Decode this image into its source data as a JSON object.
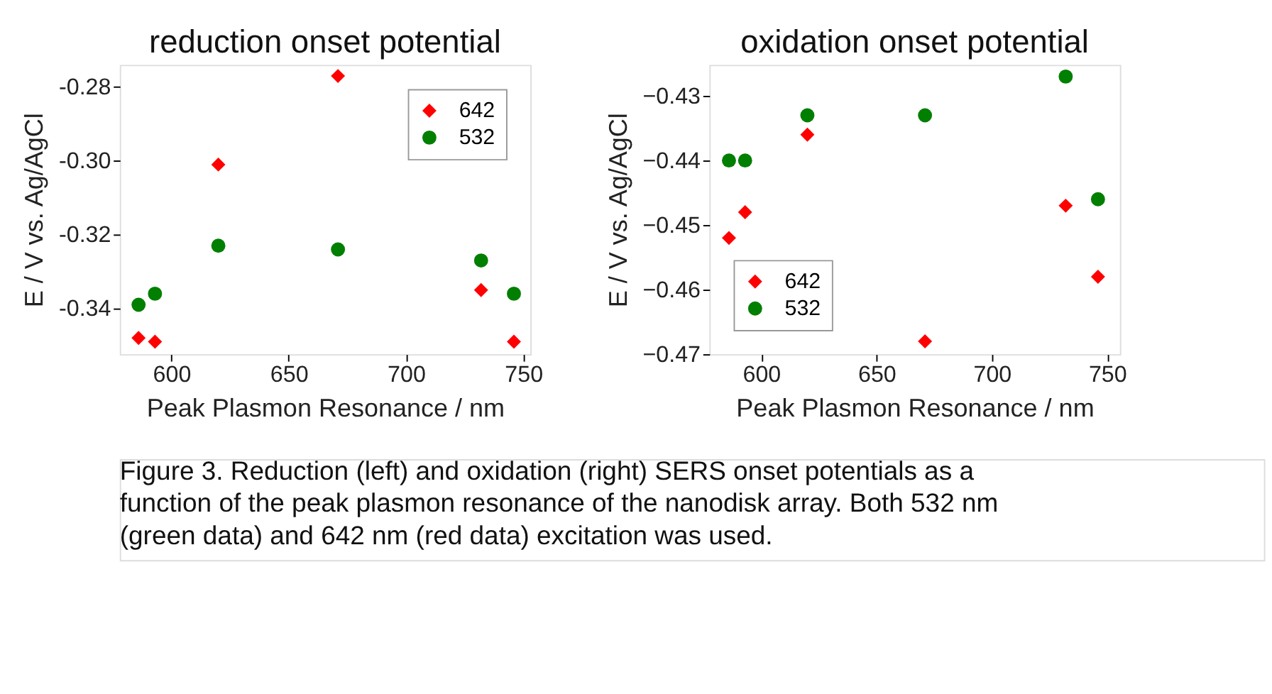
{
  "chart_data": [
    {
      "type": "scatter",
      "title": "reduction onset potential",
      "xlabel": "Peak Plasmon Resonance / nm",
      "ylabel": "E / V vs. Ag/AgCl",
      "x": [
        586,
        593,
        620,
        671,
        732,
        746
      ],
      "series": [
        {
          "name": "642",
          "color": "#ff0000",
          "marker": "diamond",
          "values": [
            -0.348,
            -0.349,
            -0.301,
            -0.277,
            -0.335,
            -0.349
          ]
        },
        {
          "name": "532",
          "color": "#007f00",
          "marker": "circle",
          "values": [
            -0.339,
            -0.336,
            -0.323,
            -0.324,
            -0.327,
            -0.336
          ]
        }
      ],
      "xlim": [
        578,
        753
      ],
      "xticks": [
        600,
        650,
        700,
        750
      ],
      "ylim": [
        -0.3524,
        -0.274
      ],
      "yticks": [
        {
          "value": -0.34,
          "label": "-0.34"
        },
        {
          "value": -0.32,
          "label": "-0.32"
        },
        {
          "value": -0.3,
          "label": "-0.30"
        },
        {
          "value": -0.28,
          "label": "-0.28"
        }
      ],
      "grid": false,
      "legend": "top right"
    },
    {
      "type": "scatter",
      "title": "oxidation onset potential",
      "xlabel": "Peak Plasmon Resonance / nm",
      "ylabel": "E / V vs. Ag/AgCl",
      "x": [
        586,
        593,
        620,
        671,
        732,
        746
      ],
      "series": [
        {
          "name": "642",
          "color": "#ff0000",
          "marker": "diamond",
          "values": [
            -0.452,
            -0.448,
            -0.436,
            -0.468,
            -0.447,
            -0.458
          ]
        },
        {
          "name": "532",
          "color": "#007f00",
          "marker": "circle",
          "values": [
            -0.44,
            -0.44,
            -0.433,
            -0.433,
            -0.427,
            -0.446
          ]
        }
      ],
      "xlim": [
        577.5,
        755.5
      ],
      "xticks": [
        600,
        650,
        700,
        750
      ],
      "ylim": [
        -0.47,
        -0.4252
      ],
      "yticks": [
        -0.47,
        -0.46,
        -0.45,
        -0.44,
        -0.43
      ],
      "grid": false,
      "legend": "bottom left",
      "annotations": [
        "Figure 3.  Reduction (left) and oxidation (right) SERS onset potentials as a function of the peak plasmon resonance of the nanodisk array.  Both 532 nm (green data) and 642 nm (red data) excitation was used."
      ]
    }
  ]
}
